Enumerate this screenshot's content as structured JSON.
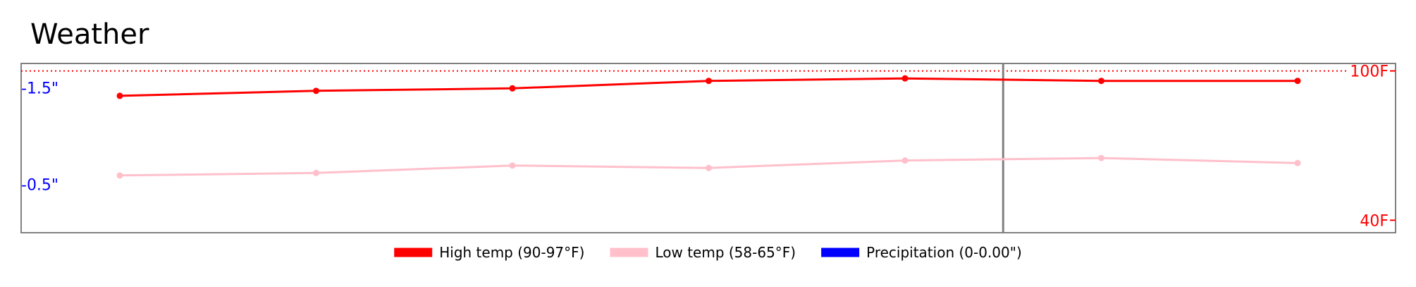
{
  "chart_data": {
    "type": "line",
    "title": "Weather",
    "x": [
      1,
      2,
      3,
      4,
      5,
      6,
      7
    ],
    "temp_axis": {
      "side": "right",
      "ylim": [
        35,
        103
      ],
      "ticks": [
        {
          "value": 100,
          "label": "100F"
        },
        {
          "value": 40,
          "label": "40F"
        }
      ],
      "color": "#ff0000",
      "reference_line": {
        "value": 100,
        "style": "dotted",
        "color": "#ff0000"
      }
    },
    "precip_axis": {
      "side": "left",
      "ylim": [
        0,
        1.75
      ],
      "ticks": [
        {
          "value": 1.5,
          "label": "-1.5\""
        },
        {
          "value": 0.5,
          "label": "-0.5\""
        }
      ],
      "color": "#0000ff"
    },
    "series": [
      {
        "name": "High temp (90-97°F)",
        "color": "#ff0000",
        "values": [
          90,
          92,
          93,
          96,
          97,
          96,
          96
        ]
      },
      {
        "name": "Low temp (58-65°F)",
        "color": "#ffc0cb",
        "values": [
          58,
          59,
          62,
          61,
          64,
          65,
          63
        ]
      },
      {
        "name": "Precipitation (0-0.00\")",
        "color": "#0000ff",
        "values": [
          0,
          0,
          0,
          0,
          0,
          0,
          0
        ]
      }
    ],
    "vertical_marker": {
      "x": 5.5,
      "color": "#808080"
    },
    "grid": false,
    "legend": {
      "placement": "bottom-center"
    }
  }
}
